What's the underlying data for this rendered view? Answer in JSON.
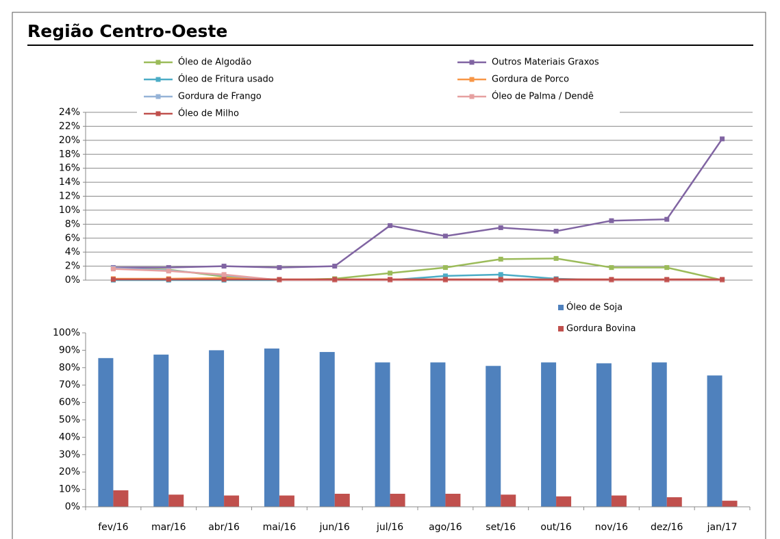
{
  "title": "Região Centro-Oeste",
  "chart_data": [
    {
      "type": "line",
      "ylim": [
        0,
        24
      ],
      "yticks": [
        {
          "value": 0,
          "label": "0%"
        },
        {
          "value": 2,
          "label": "2%"
        },
        {
          "value": 4,
          "label": "4%"
        },
        {
          "value": 6,
          "label": "6%"
        },
        {
          "value": 8,
          "label": "8%"
        },
        {
          "value": 10,
          "label": "10%"
        },
        {
          "value": 12,
          "label": "12%"
        },
        {
          "value": 14,
          "label": "14%"
        },
        {
          "value": 16,
          "label": "16%"
        },
        {
          "value": 18,
          "label": "18%"
        },
        {
          "value": 20,
          "label": "20%"
        },
        {
          "value": 22,
          "label": "22%"
        },
        {
          "value": 24,
          "label": "24%"
        }
      ],
      "grid": true,
      "series": [
        {
          "name": "Óleo de Algodão",
          "color": "#9bbb59",
          "values": [
            1.7,
            1.5,
            0.5,
            0,
            0.2,
            1.0,
            1.8,
            3.0,
            3.1,
            1.8,
            1.8,
            0
          ]
        },
        {
          "name": "Outros Materiais Graxos",
          "color": "#8064a2",
          "values": [
            1.8,
            1.8,
            2.0,
            1.8,
            2.0,
            7.8,
            6.3,
            7.5,
            7.0,
            8.5,
            8.7,
            20.2
          ]
        },
        {
          "name": "Óleo de Fritura usado",
          "color": "#4bacc6",
          "values": [
            0,
            0,
            0,
            0,
            0,
            0,
            0.6,
            0.8,
            0.2,
            0,
            0,
            0
          ]
        },
        {
          "name": "Gordura de Porco",
          "color": "#f79646",
          "values": [
            0.2,
            0.2,
            0.3,
            0.1,
            0.1,
            0.1,
            0.1,
            0.1,
            0.1,
            0.1,
            0.1,
            0.1
          ]
        },
        {
          "name": "Gordura de Frango",
          "color": "#95b3d7",
          "values": [
            1.7,
            1.4,
            0.7,
            0,
            0,
            0,
            0,
            0,
            0,
            0,
            0,
            0
          ]
        },
        {
          "name": "Óleo de Palma / Dendê",
          "color": "#e6a0a0",
          "values": [
            1.6,
            1.3,
            0.8,
            0,
            0,
            0,
            0,
            0,
            0,
            0,
            0,
            0
          ]
        },
        {
          "name": "Óleo de Milho",
          "color": "#c0504d",
          "values": [
            0.1,
            0.1,
            0.1,
            0.1,
            0.1,
            0.1,
            0.1,
            0.1,
            0.1,
            0.1,
            0.1,
            0.1
          ]
        }
      ]
    },
    {
      "type": "bar",
      "categories": [
        "fev/16",
        "mar/16",
        "abr/16",
        "mai/16",
        "jun/16",
        "jul/16",
        "ago/16",
        "set/16",
        "out/16",
        "nov/16",
        "dez/16",
        "jan/17"
      ],
      "ylim": [
        0,
        100
      ],
      "yticks": [
        {
          "value": 0,
          "label": "0%"
        },
        {
          "value": 10,
          "label": "10%"
        },
        {
          "value": 20,
          "label": "20%"
        },
        {
          "value": 30,
          "label": "30%"
        },
        {
          "value": 40,
          "label": "40%"
        },
        {
          "value": 50,
          "label": "50%"
        },
        {
          "value": 60,
          "label": "60%"
        },
        {
          "value": 70,
          "label": "70%"
        },
        {
          "value": 80,
          "label": "80%"
        },
        {
          "value": 90,
          "label": "90%"
        },
        {
          "value": 100,
          "label": "100%"
        }
      ],
      "grid": false,
      "series": [
        {
          "name": "Óleo de Soja",
          "color": "#4f81bd",
          "values": [
            85.5,
            87.5,
            90,
            91,
            89,
            83,
            83,
            81,
            83,
            82.5,
            83,
            75.5
          ]
        },
        {
          "name": "Gordura Bovina",
          "color": "#c0504d",
          "values": [
            9.5,
            7,
            6.5,
            6.5,
            7.5,
            7.5,
            7.5,
            7,
            6,
            6.5,
            5.5,
            3.5
          ]
        }
      ]
    }
  ]
}
